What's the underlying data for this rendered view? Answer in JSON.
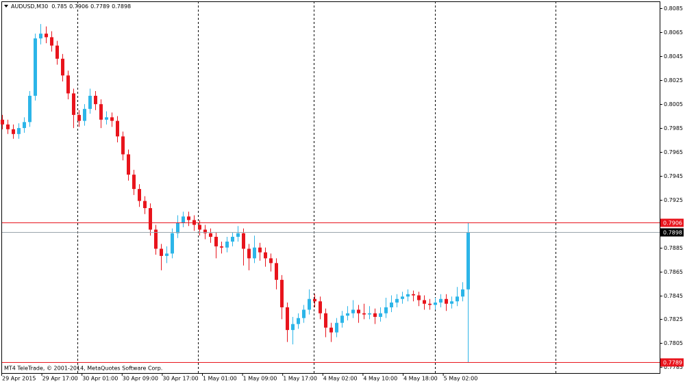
{
  "chart_data": {
    "type": "candlestick",
    "symbol": "AUDUSD,M30",
    "copyright": "MT4 TeleTrade, © 2001-2014, MetaQuotes Software Corp.",
    "up_color": "#2cb5e8",
    "down_color": "#e8141c",
    "ylim": [
      0.778,
      0.8091
    ],
    "yticks": [
      0.8085,
      0.8065,
      0.8045,
      0.8025,
      0.8005,
      0.7985,
      0.7965,
      0.7945,
      0.7925,
      0.7885,
      0.7865,
      0.7845,
      0.7825,
      0.7805,
      0.7785
    ],
    "xlabels": [
      "29 Apr 2015",
      "29 Apr 17:00",
      "30 Apr 01:00",
      "30 Apr 09:00",
      "30 Apr 17:00",
      "1 May 01:00",
      "1 May 09:00",
      "1 May 17:00",
      "4 May 02:00",
      "4 May 10:00",
      "4 May 18:00",
      "5 May 02:00"
    ],
    "levels": [
      {
        "value": 0.7906,
        "color": "#e8141c"
      },
      {
        "value": 0.7898,
        "color": "#9aa4ac"
      },
      {
        "value": 0.7789,
        "color": "#e8141c"
      }
    ],
    "ohlc": [
      [
        0.7992,
        0.7996,
        0.7984,
        0.7988
      ],
      [
        0.7988,
        0.7992,
        0.798,
        0.7984
      ],
      [
        0.7984,
        0.7988,
        0.7976,
        0.798
      ],
      [
        0.798,
        0.7989,
        0.7976,
        0.7985
      ],
      [
        0.7985,
        0.7994,
        0.7981,
        0.799
      ],
      [
        0.799,
        0.8016,
        0.7986,
        0.8012
      ],
      [
        0.8012,
        0.8064,
        0.8008,
        0.806
      ],
      [
        0.806,
        0.8072,
        0.8055,
        0.8064
      ],
      [
        0.8064,
        0.807,
        0.8056,
        0.8061
      ],
      [
        0.8061,
        0.8066,
        0.8049,
        0.8054
      ],
      [
        0.8054,
        0.8058,
        0.8038,
        0.8043
      ],
      [
        0.8043,
        0.8047,
        0.8024,
        0.8029
      ],
      [
        0.8029,
        0.8033,
        0.8009,
        0.8014
      ],
      [
        0.8014,
        0.8018,
        0.7985,
        0.7996
      ],
      [
        0.7996,
        0.8,
        0.7986,
        0.7991
      ],
      [
        0.7991,
        0.8005,
        0.7987,
        0.8001
      ],
      [
        0.8001,
        0.8018,
        0.7997,
        0.8012
      ],
      [
        0.8012,
        0.8016,
        0.8,
        0.8005
      ],
      [
        0.8005,
        0.8009,
        0.7985,
        0.7992
      ],
      [
        0.7992,
        0.7999,
        0.7988,
        0.7994
      ],
      [
        0.7994,
        0.7998,
        0.7986,
        0.7991
      ],
      [
        0.7991,
        0.7995,
        0.7973,
        0.7978
      ],
      [
        0.7978,
        0.7982,
        0.7958,
        0.7963
      ],
      [
        0.7963,
        0.7967,
        0.7941,
        0.7946
      ],
      [
        0.7946,
        0.795,
        0.7929,
        0.7934
      ],
      [
        0.7934,
        0.7938,
        0.7919,
        0.7924
      ],
      [
        0.7924,
        0.7928,
        0.7913,
        0.7918
      ],
      [
        0.7918,
        0.7922,
        0.7895,
        0.79
      ],
      [
        0.79,
        0.7904,
        0.7879,
        0.7884
      ],
      [
        0.7884,
        0.7888,
        0.7866,
        0.7878
      ],
      [
        0.7878,
        0.7886,
        0.7872,
        0.788
      ],
      [
        0.788,
        0.7901,
        0.7876,
        0.7897
      ],
      [
        0.7897,
        0.7912,
        0.7893,
        0.7906
      ],
      [
        0.7906,
        0.7915,
        0.7902,
        0.7911
      ],
      [
        0.7911,
        0.7915,
        0.7903,
        0.7908
      ],
      [
        0.7908,
        0.7912,
        0.7899,
        0.7904
      ],
      [
        0.7904,
        0.7908,
        0.7895,
        0.79
      ],
      [
        0.79,
        0.7904,
        0.7892,
        0.7897
      ],
      [
        0.7897,
        0.7901,
        0.7889,
        0.7894
      ],
      [
        0.7894,
        0.7898,
        0.7876,
        0.7886
      ],
      [
        0.7886,
        0.789,
        0.788,
        0.7885
      ],
      [
        0.7885,
        0.7894,
        0.7881,
        0.789
      ],
      [
        0.789,
        0.7898,
        0.7886,
        0.7894
      ],
      [
        0.7894,
        0.7903,
        0.789,
        0.7897
      ],
      [
        0.7897,
        0.7901,
        0.787,
        0.7884
      ],
      [
        0.7884,
        0.7888,
        0.7866,
        0.7876
      ],
      [
        0.7876,
        0.7895,
        0.7872,
        0.7885
      ],
      [
        0.7885,
        0.7889,
        0.7874,
        0.7881
      ],
      [
        0.7881,
        0.7885,
        0.7869,
        0.7876
      ],
      [
        0.7876,
        0.788,
        0.7865,
        0.7872
      ],
      [
        0.7872,
        0.7876,
        0.785,
        0.7858
      ],
      [
        0.7858,
        0.7862,
        0.7825,
        0.7835
      ],
      [
        0.7835,
        0.7839,
        0.7806,
        0.7816
      ],
      [
        0.7816,
        0.7827,
        0.7804,
        0.7821
      ],
      [
        0.7821,
        0.783,
        0.7817,
        0.7826
      ],
      [
        0.7826,
        0.7837,
        0.7822,
        0.7833
      ],
      [
        0.7833,
        0.785,
        0.7829,
        0.7842
      ],
      [
        0.7842,
        0.7846,
        0.7835,
        0.784
      ],
      [
        0.784,
        0.7844,
        0.7825,
        0.783
      ],
      [
        0.783,
        0.7834,
        0.781,
        0.7818
      ],
      [
        0.7818,
        0.7822,
        0.7806,
        0.7814
      ],
      [
        0.7814,
        0.7826,
        0.781,
        0.7822
      ],
      [
        0.7822,
        0.7832,
        0.7818,
        0.7828
      ],
      [
        0.7828,
        0.7836,
        0.7824,
        0.783
      ],
      [
        0.783,
        0.7841,
        0.7826,
        0.7833
      ],
      [
        0.7833,
        0.7837,
        0.7822,
        0.783
      ],
      [
        0.783,
        0.7838,
        0.7825,
        0.7829
      ],
      [
        0.7829,
        0.7836,
        0.7825,
        0.783
      ],
      [
        0.783,
        0.7834,
        0.7821,
        0.7827
      ],
      [
        0.7827,
        0.7835,
        0.7823,
        0.783
      ],
      [
        0.783,
        0.7843,
        0.7826,
        0.7835
      ],
      [
        0.7835,
        0.7845,
        0.7831,
        0.7839
      ],
      [
        0.7839,
        0.7846,
        0.7835,
        0.7842
      ],
      [
        0.7842,
        0.7848,
        0.7838,
        0.7844
      ],
      [
        0.7844,
        0.785,
        0.784,
        0.7846
      ],
      [
        0.7846,
        0.7849,
        0.784,
        0.7845
      ],
      [
        0.7845,
        0.7848,
        0.7836,
        0.7841
      ],
      [
        0.7841,
        0.7845,
        0.7833,
        0.7838
      ],
      [
        0.7838,
        0.7842,
        0.7833,
        0.7837
      ],
      [
        0.7837,
        0.7843,
        0.7833,
        0.7839
      ],
      [
        0.7839,
        0.7846,
        0.7835,
        0.7842
      ],
      [
        0.7842,
        0.7846,
        0.7832,
        0.7838
      ],
      [
        0.7838,
        0.7844,
        0.7834,
        0.784
      ],
      [
        0.784,
        0.7852,
        0.7836,
        0.7844
      ],
      [
        0.7844,
        0.7856,
        0.784,
        0.785
      ],
      [
        0.785,
        0.7906,
        0.7789,
        0.7898
      ]
    ]
  }
}
